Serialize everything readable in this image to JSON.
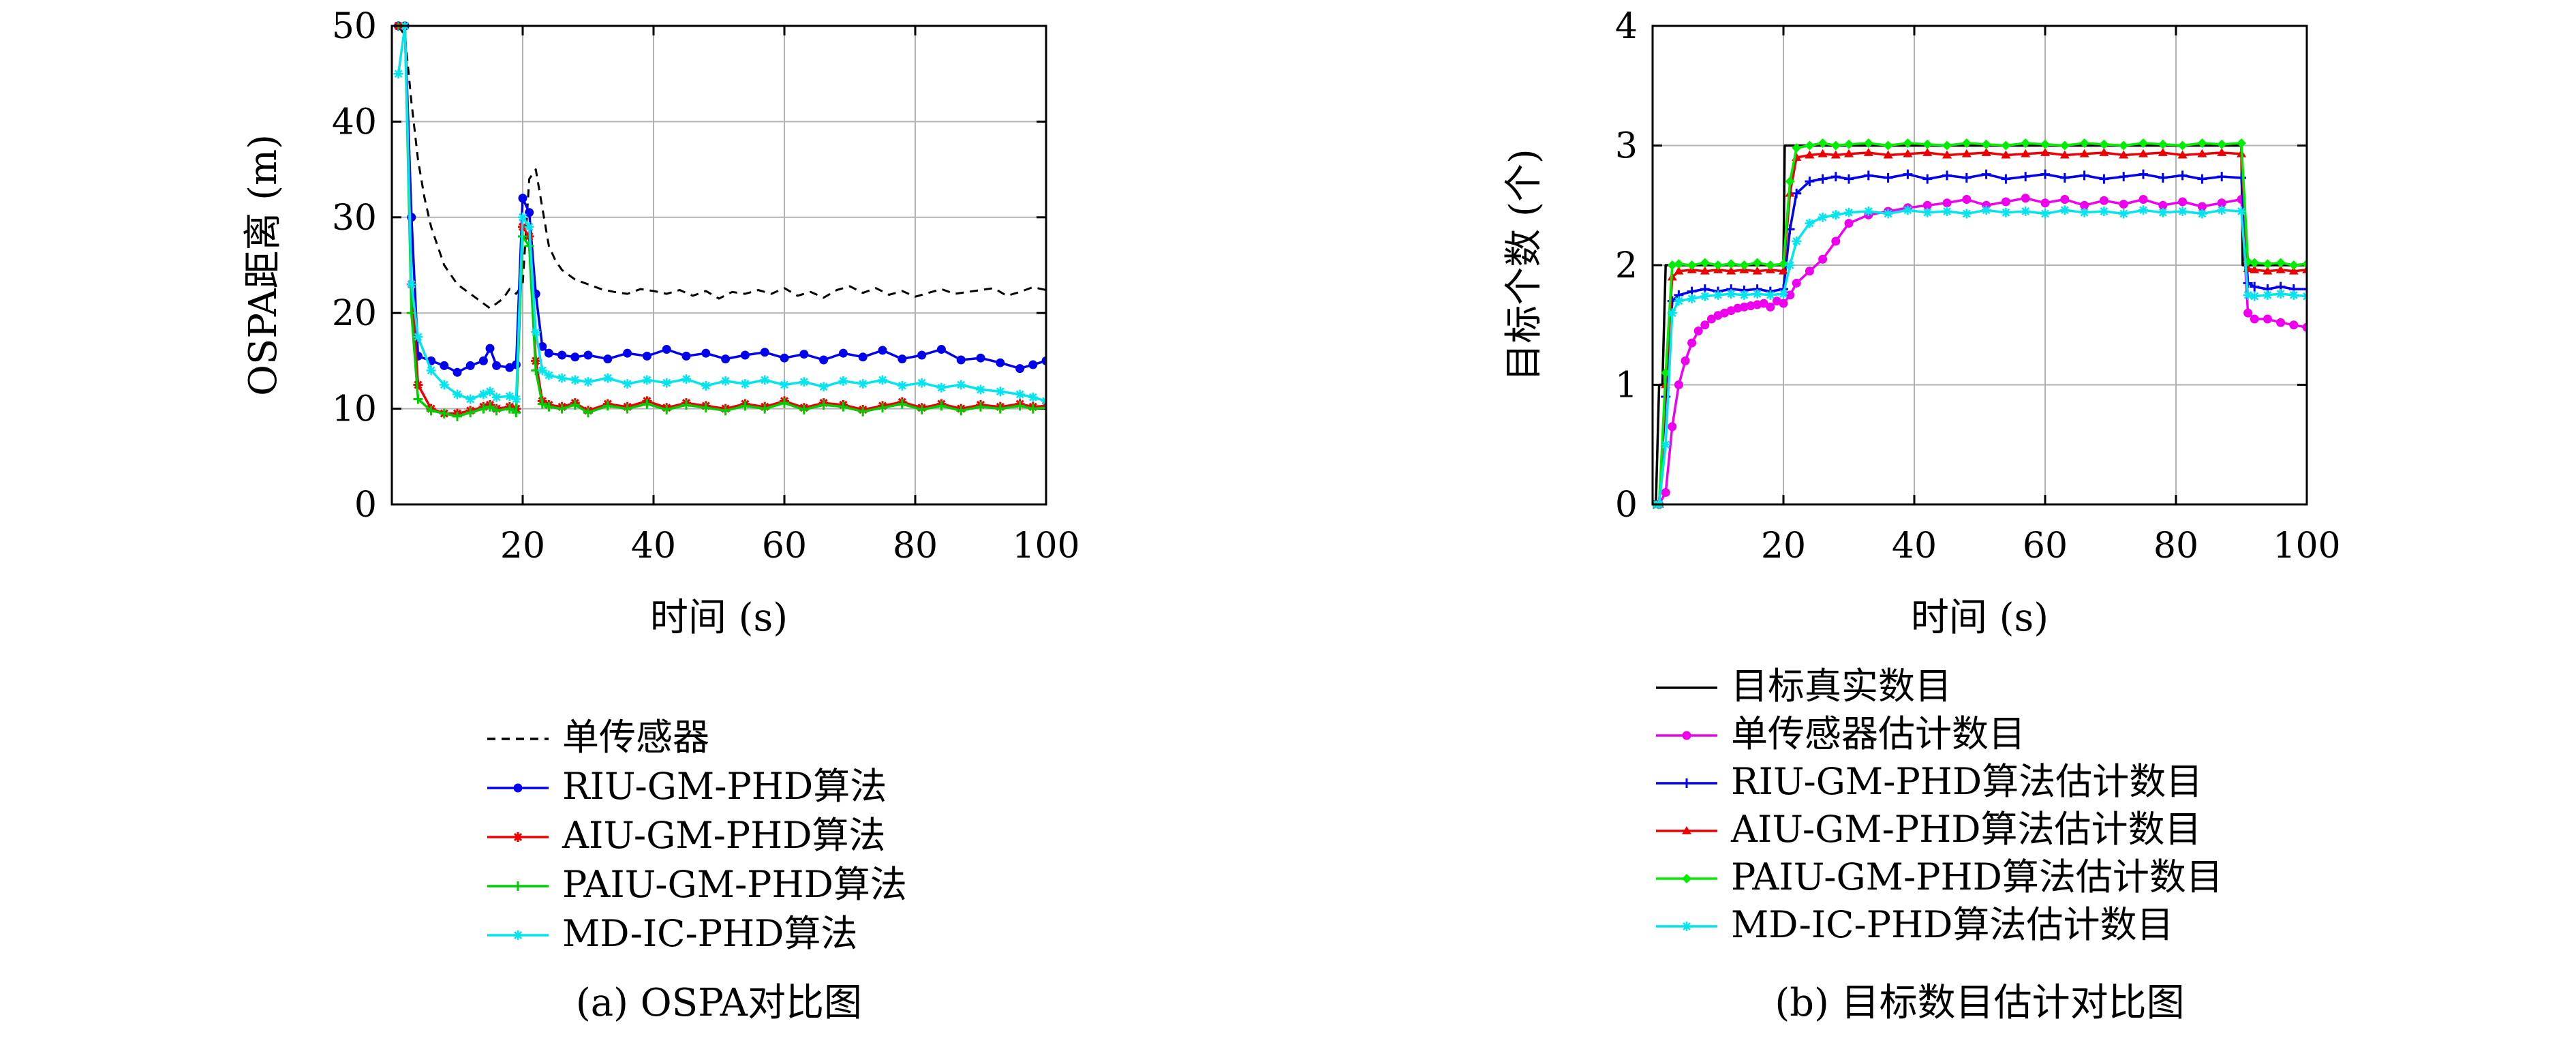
{
  "chart_data": [
    {
      "type": "line",
      "caption": "(a) OSPA对比图",
      "xlabel": "时间 (s)",
      "ylabel": "OSPA距离 (m)",
      "xlim": [
        0,
        100
      ],
      "ylim": [
        0,
        50
      ],
      "xticks": [
        20,
        40,
        60,
        80,
        100
      ],
      "yticks": [
        0,
        10,
        20,
        30,
        40,
        50
      ],
      "grid": true,
      "legend_position": "below",
      "series": [
        {
          "name": "单传感器",
          "color": "#000000",
          "style": "dashed",
          "marker": "none",
          "x": [
            1,
            2,
            3,
            4,
            5,
            6,
            7,
            8,
            9,
            10,
            11,
            12,
            13,
            14,
            15,
            16,
            17,
            18,
            19,
            20,
            21,
            22,
            23,
            24,
            25,
            26,
            27,
            28,
            30,
            32,
            34,
            36,
            38,
            40,
            42,
            44,
            46,
            48,
            50,
            52,
            54,
            56,
            58,
            60,
            62,
            64,
            66,
            68,
            70,
            72,
            74,
            76,
            78,
            80,
            82,
            84,
            86,
            88,
            90,
            92,
            94,
            96,
            98,
            100
          ],
          "y": [
            50,
            49,
            42,
            36,
            32,
            29,
            27,
            25,
            24,
            23,
            22.5,
            22,
            21.5,
            21,
            20.5,
            21,
            21.5,
            22.5,
            22,
            23,
            34,
            35,
            31,
            27,
            25.5,
            24.5,
            24,
            23.5,
            23,
            22.5,
            22.2,
            22,
            22.5,
            22.3,
            22,
            22.4,
            21.8,
            22.3,
            21.5,
            22.2,
            22,
            22.4,
            22,
            22.6,
            21.8,
            22.2,
            21.6,
            22.4,
            22.8,
            22.1,
            22.6,
            21.9,
            22.3,
            21.7,
            22.1,
            22.5,
            22,
            22.2,
            22.4,
            22.6,
            21.8,
            22.2,
            22.7,
            22.4
          ]
        },
        {
          "name": "RIU-GM-PHD算法",
          "color": "#0000ee",
          "style": "solid",
          "marker": "dot",
          "x": [
            1,
            2,
            3,
            4,
            6,
            8,
            10,
            12,
            14,
            15,
            16,
            18,
            19,
            20,
            21,
            22,
            23,
            24,
            26,
            28,
            30,
            33,
            36,
            39,
            42,
            45,
            48,
            51,
            54,
            57,
            60,
            63,
            66,
            69,
            72,
            75,
            78,
            81,
            84,
            87,
            90,
            93,
            96,
            98,
            100
          ],
          "y": [
            50,
            50,
            30,
            15.5,
            15,
            14.5,
            13.8,
            14.5,
            15,
            16.3,
            14.5,
            14.3,
            14.6,
            32,
            30.5,
            22,
            16.5,
            15.8,
            15.6,
            15.4,
            15.6,
            15.2,
            15.8,
            15.5,
            16.2,
            15.5,
            15.8,
            15.2,
            15.6,
            15.9,
            15.3,
            15.7,
            15.1,
            15.8,
            15.4,
            16.1,
            15.2,
            15.6,
            16.2,
            15.1,
            15.3,
            14.8,
            14.2,
            14.6,
            15
          ]
        },
        {
          "name": "AIU-GM-PHD算法",
          "color": "#ee0000",
          "style": "solid",
          "marker": "star",
          "x": [
            1,
            2,
            3,
            4,
            6,
            8,
            10,
            12,
            14,
            15,
            16,
            18,
            19,
            20,
            21,
            22,
            23,
            24,
            26,
            28,
            30,
            33,
            36,
            39,
            42,
            45,
            48,
            51,
            54,
            57,
            60,
            63,
            66,
            69,
            72,
            75,
            78,
            81,
            84,
            87,
            90,
            93,
            96,
            98,
            100
          ],
          "y": [
            50,
            50,
            23,
            12.5,
            10,
            9.5,
            9.5,
            9.8,
            10.2,
            10.4,
            10,
            10.2,
            10,
            29,
            28,
            15,
            10.8,
            10.4,
            10.2,
            10.6,
            9.8,
            10.5,
            10.2,
            10.8,
            10.1,
            10.6,
            10.3,
            10,
            10.5,
            10.2,
            10.8,
            10.1,
            10.6,
            10.4,
            9.9,
            10.3,
            10.7,
            10.1,
            10.5,
            10,
            10.4,
            10.2,
            10.5,
            10.2,
            10.3
          ]
        },
        {
          "name": "PAIU-GM-PHD算法",
          "color": "#00cc00",
          "style": "solid",
          "marker": "plus",
          "x": [
            1,
            2,
            3,
            4,
            6,
            8,
            10,
            12,
            14,
            15,
            16,
            18,
            19,
            20,
            21,
            22,
            23,
            24,
            26,
            28,
            30,
            33,
            36,
            39,
            42,
            45,
            48,
            51,
            54,
            57,
            60,
            63,
            66,
            69,
            72,
            75,
            78,
            81,
            84,
            87,
            90,
            93,
            96,
            98,
            100
          ],
          "y": [
            50,
            50,
            20,
            11,
            9.8,
            9.5,
            9.2,
            9.6,
            10,
            10.2,
            9.8,
            10,
            9.6,
            28,
            27,
            14,
            10.5,
            10.2,
            10,
            10.4,
            9.6,
            10.3,
            10,
            10.5,
            9.9,
            10.4,
            10.1,
            9.8,
            10.3,
            10,
            10.6,
            9.9,
            10.4,
            10.2,
            9.7,
            10.1,
            10.5,
            9.9,
            10.3,
            9.8,
            10.2,
            10,
            10.3,
            10,
            10.1
          ]
        },
        {
          "name": "MD-IC-PHD算法",
          "color": "#00e5ee",
          "style": "solid",
          "marker": "cross",
          "x": [
            1,
            2,
            3,
            4,
            6,
            8,
            10,
            12,
            14,
            15,
            16,
            18,
            19,
            20,
            21,
            22,
            23,
            24,
            26,
            28,
            30,
            33,
            36,
            39,
            42,
            45,
            48,
            51,
            54,
            57,
            60,
            63,
            66,
            69,
            72,
            75,
            78,
            81,
            84,
            87,
            90,
            93,
            96,
            98,
            100
          ],
          "y": [
            45,
            50,
            23,
            17.5,
            14,
            12.5,
            11.5,
            11,
            11.5,
            11.8,
            11.2,
            11.3,
            11,
            30,
            29,
            18,
            14,
            13.5,
            13.2,
            13,
            12.8,
            13.2,
            12.6,
            13,
            12.7,
            13.1,
            12.4,
            12.9,
            12.6,
            13,
            12.5,
            12.8,
            12.3,
            12.9,
            12.6,
            13,
            12.4,
            12.7,
            12.2,
            12.5,
            12,
            11.8,
            11.5,
            11.2,
            10.8
          ]
        }
      ]
    },
    {
      "type": "line",
      "caption": "(b) 目标数目估计对比图",
      "xlabel": "时间 (s)",
      "ylabel": "目标个数 (个)",
      "xlim": [
        0,
        100
      ],
      "ylim": [
        0,
        4
      ],
      "xticks": [
        20,
        40,
        60,
        80,
        100
      ],
      "yticks": [
        0,
        1,
        2,
        3,
        4
      ],
      "grid": true,
      "legend_position": "below",
      "series": [
        {
          "name": "目标真实数目",
          "color": "#000000",
          "style": "solid",
          "marker": "none",
          "x": [
            0,
            0.5,
            1,
            1.5,
            2,
            20,
            20.2,
            90,
            90.2,
            100
          ],
          "y": [
            0,
            0,
            1,
            1,
            2,
            2,
            3,
            3,
            2,
            2
          ]
        },
        {
          "name": "单传感器估计数目",
          "color": "#ee00ee",
          "style": "solid",
          "marker": "dot",
          "x": [
            0,
            1,
            2,
            3,
            4,
            5,
            6,
            7,
            8,
            9,
            10,
            11,
            12,
            13,
            14,
            15,
            16,
            17,
            18,
            19,
            20,
            21,
            22,
            24,
            26,
            28,
            30,
            33,
            36,
            39,
            42,
            45,
            48,
            51,
            54,
            57,
            60,
            63,
            66,
            69,
            72,
            75,
            78,
            81,
            84,
            87,
            90,
            91,
            92,
            94,
            96,
            98,
            100
          ],
          "y": [
            0,
            0,
            0.1,
            0.65,
            1.0,
            1.2,
            1.35,
            1.45,
            1.5,
            1.55,
            1.58,
            1.6,
            1.62,
            1.64,
            1.65,
            1.66,
            1.67,
            1.68,
            1.65,
            1.7,
            1.68,
            1.75,
            1.85,
            1.95,
            2.05,
            2.2,
            2.35,
            2.42,
            2.45,
            2.48,
            2.5,
            2.52,
            2.55,
            2.5,
            2.53,
            2.56,
            2.52,
            2.55,
            2.5,
            2.54,
            2.51,
            2.55,
            2.5,
            2.53,
            2.49,
            2.52,
            2.55,
            1.6,
            1.55,
            1.55,
            1.52,
            1.5,
            1.48
          ]
        },
        {
          "name": "RIU-GM-PHD算法估计数目",
          "color": "#0000ee",
          "style": "solid",
          "marker": "plus",
          "x": [
            0,
            1,
            2,
            3,
            4,
            6,
            8,
            10,
            12,
            14,
            16,
            18,
            20,
            21,
            22,
            24,
            26,
            28,
            30,
            33,
            36,
            39,
            42,
            45,
            48,
            51,
            54,
            57,
            60,
            63,
            66,
            69,
            72,
            75,
            78,
            81,
            84,
            87,
            90,
            91,
            92,
            94,
            96,
            98,
            100
          ],
          "y": [
            0,
            0,
            0.9,
            1.7,
            1.75,
            1.78,
            1.8,
            1.78,
            1.8,
            1.79,
            1.8,
            1.78,
            1.8,
            2.3,
            2.6,
            2.7,
            2.72,
            2.74,
            2.72,
            2.75,
            2.73,
            2.76,
            2.72,
            2.75,
            2.73,
            2.76,
            2.72,
            2.74,
            2.76,
            2.73,
            2.75,
            2.72,
            2.74,
            2.76,
            2.73,
            2.75,
            2.72,
            2.74,
            2.73,
            1.85,
            1.82,
            1.8,
            1.82,
            1.8,
            1.8
          ]
        },
        {
          "name": "AIU-GM-PHD算法估计数目",
          "color": "#ee0000",
          "style": "solid",
          "marker": "triangle",
          "x": [
            0,
            1,
            2,
            3,
            4,
            6,
            8,
            10,
            12,
            14,
            16,
            18,
            20,
            21,
            22,
            24,
            26,
            28,
            30,
            33,
            36,
            39,
            42,
            45,
            48,
            51,
            54,
            57,
            60,
            63,
            66,
            69,
            72,
            75,
            78,
            81,
            84,
            87,
            90,
            91,
            92,
            94,
            96,
            98,
            100
          ],
          "y": [
            0,
            0,
            1.0,
            1.9,
            1.95,
            1.96,
            1.95,
            1.96,
            1.95,
            1.96,
            1.95,
            1.96,
            1.95,
            2.6,
            2.9,
            2.92,
            2.93,
            2.92,
            2.93,
            2.94,
            2.92,
            2.93,
            2.94,
            2.92,
            2.93,
            2.94,
            2.92,
            2.93,
            2.94,
            2.92,
            2.93,
            2.94,
            2.92,
            2.93,
            2.94,
            2.92,
            2.93,
            2.94,
            2.93,
            1.97,
            1.96,
            1.95,
            1.96,
            1.95,
            1.96
          ]
        },
        {
          "name": "PAIU-GM-PHD算法估计数目",
          "color": "#00ee00",
          "style": "solid",
          "marker": "diamond",
          "x": [
            0,
            1,
            2,
            3,
            4,
            6,
            8,
            10,
            12,
            14,
            16,
            18,
            20,
            21,
            22,
            24,
            26,
            28,
            30,
            33,
            36,
            39,
            42,
            45,
            48,
            51,
            54,
            57,
            60,
            63,
            66,
            69,
            72,
            75,
            78,
            81,
            84,
            87,
            90,
            91,
            92,
            94,
            96,
            98,
            100
          ],
          "y": [
            0,
            0,
            1.1,
            2.0,
            2.01,
            2.0,
            2.02,
            2.0,
            2.01,
            2.0,
            2.02,
            2.0,
            2.01,
            2.7,
            2.98,
            3.0,
            3.02,
            3.0,
            3.01,
            3.02,
            3.0,
            3.02,
            3.01,
            3.0,
            3.02,
            3.01,
            3.0,
            3.02,
            3.01,
            3.0,
            3.02,
            3.01,
            3.0,
            3.02,
            3.01,
            3.0,
            3.02,
            3.01,
            3.02,
            2.03,
            2.02,
            2.01,
            2.02,
            2.0,
            2.01
          ]
        },
        {
          "name": "MD-IC-PHD算法估计数目",
          "color": "#00e5ee",
          "style": "solid",
          "marker": "cross",
          "x": [
            0,
            1,
            2,
            3,
            4,
            6,
            8,
            10,
            12,
            14,
            16,
            18,
            20,
            21,
            22,
            24,
            26,
            28,
            30,
            33,
            36,
            39,
            42,
            45,
            48,
            51,
            54,
            57,
            60,
            63,
            66,
            69,
            72,
            75,
            78,
            81,
            84,
            87,
            90,
            91,
            92,
            94,
            96,
            98,
            100
          ],
          "y": [
            0,
            0,
            0.5,
            1.6,
            1.7,
            1.72,
            1.74,
            1.75,
            1.76,
            1.75,
            1.76,
            1.75,
            1.76,
            2.0,
            2.2,
            2.35,
            2.4,
            2.42,
            2.44,
            2.45,
            2.43,
            2.46,
            2.44,
            2.45,
            2.43,
            2.46,
            2.44,
            2.45,
            2.43,
            2.46,
            2.44,
            2.45,
            2.43,
            2.46,
            2.44,
            2.45,
            2.43,
            2.46,
            2.45,
            1.75,
            1.74,
            1.75,
            1.76,
            1.75,
            1.74
          ]
        }
      ]
    }
  ]
}
